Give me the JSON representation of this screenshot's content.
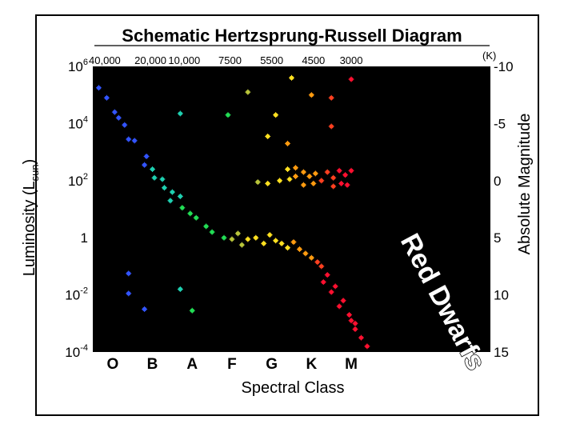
{
  "chart_data": {
    "type": "scatter",
    "title": "Schematic Hertzsprung-Russell Diagram",
    "xlabel": "Spectral Class",
    "ylabel_base": "Luminosity (L",
    "ylabel_sub": "sun",
    "ylabel_close": ")",
    "y2label": "Absolute Magnitude",
    "xlim": [
      0,
      10
    ],
    "ylim_log10": [
      -4,
      6
    ],
    "grid": false,
    "categories": [
      "O",
      "B",
      "A",
      "F",
      "G",
      "K",
      "M"
    ],
    "category_positions": [
      0.5,
      1.5,
      2.5,
      3.5,
      4.5,
      5.5,
      6.5
    ],
    "temperature_labels": [
      {
        "label": "40,000",
        "x": 0.3
      },
      {
        "label": "20,000",
        "x": 1.45
      },
      {
        "label": "10,000",
        "x": 2.3
      },
      {
        "label": "7500",
        "x": 3.45
      },
      {
        "label": "5500",
        "x": 4.5
      },
      {
        "label": "4500",
        "x": 5.55
      },
      {
        "label": "3000",
        "x": 6.5
      }
    ],
    "temperature_unit": "(K)",
    "y_ticks": [
      {
        "base": "10",
        "exp": "6",
        "value": 6
      },
      {
        "base": "10",
        "exp": "4",
        "value": 4
      },
      {
        "base": "10",
        "exp": "2",
        "value": 2
      },
      {
        "base": "1",
        "exp": "",
        "value": 0
      },
      {
        "base": "10",
        "exp": "-2",
        "value": -2
      },
      {
        "base": "10",
        "exp": "-4",
        "value": -4
      }
    ],
    "y2_ticks": [
      {
        "label": "-10",
        "logL": 6
      },
      {
        "label": "-5",
        "logL": 4
      },
      {
        "label": "0",
        "logL": 2
      },
      {
        "label": "5",
        "logL": 0
      },
      {
        "label": "10",
        "logL": -2
      },
      {
        "label": "15",
        "logL": -4
      }
    ],
    "annotation": "Red Dwarfs",
    "colors": {
      "O": "#3355ff",
      "B": "#3355ff",
      "A": "#1fd0b0",
      "A2": "#22dd55",
      "F": "#b8c43a",
      "G": "#ffe020",
      "K": "#ff9b10",
      "K2": "#ff4020",
      "M": "#ff1030"
    },
    "stars": [
      {
        "x": 0.15,
        "logL": 5.25,
        "c": "O"
      },
      {
        "x": 0.35,
        "logL": 4.9,
        "c": "O"
      },
      {
        "x": 0.55,
        "logL": 4.4,
        "c": "O"
      },
      {
        "x": 0.65,
        "logL": 4.2,
        "c": "O"
      },
      {
        "x": 0.8,
        "logL": 3.95,
        "c": "O"
      },
      {
        "x": 0.9,
        "logL": 3.45,
        "c": "O"
      },
      {
        "x": 1.05,
        "logL": 3.4,
        "c": "O"
      },
      {
        "x": 1.35,
        "logL": 2.85,
        "c": "B"
      },
      {
        "x": 1.3,
        "logL": 2.55,
        "c": "B"
      },
      {
        "x": 1.5,
        "logL": 2.4,
        "c": "A"
      },
      {
        "x": 1.55,
        "logL": 2.1,
        "c": "A"
      },
      {
        "x": 1.75,
        "logL": 2.05,
        "c": "A"
      },
      {
        "x": 1.8,
        "logL": 1.75,
        "c": "A"
      },
      {
        "x": 2.0,
        "logL": 1.6,
        "c": "A"
      },
      {
        "x": 1.95,
        "logL": 1.3,
        "c": "A"
      },
      {
        "x": 2.2,
        "logL": 1.45,
        "c": "A"
      },
      {
        "x": 2.25,
        "logL": 1.05,
        "c": "A2"
      },
      {
        "x": 2.45,
        "logL": 0.85,
        "c": "A2"
      },
      {
        "x": 2.6,
        "logL": 0.7,
        "c": "A2"
      },
      {
        "x": 2.85,
        "logL": 0.4,
        "c": "A2"
      },
      {
        "x": 3.0,
        "logL": 0.2,
        "c": "A2"
      },
      {
        "x": 3.3,
        "logL": 0.0,
        "c": "A2"
      },
      {
        "x": 3.5,
        "logL": -0.05,
        "c": "F"
      },
      {
        "x": 3.65,
        "logL": 0.15,
        "c": "F"
      },
      {
        "x": 3.75,
        "logL": -0.25,
        "c": "F"
      },
      {
        "x": 3.9,
        "logL": -0.05,
        "c": "G"
      },
      {
        "x": 4.1,
        "logL": 0.0,
        "c": "G"
      },
      {
        "x": 4.3,
        "logL": -0.2,
        "c": "G"
      },
      {
        "x": 4.45,
        "logL": 0.1,
        "c": "G"
      },
      {
        "x": 4.6,
        "logL": -0.1,
        "c": "G"
      },
      {
        "x": 4.75,
        "logL": -0.2,
        "c": "G"
      },
      {
        "x": 4.9,
        "logL": -0.35,
        "c": "G"
      },
      {
        "x": 5.05,
        "logL": -0.15,
        "c": "K"
      },
      {
        "x": 5.2,
        "logL": -0.4,
        "c": "K"
      },
      {
        "x": 5.35,
        "logL": -0.55,
        "c": "K"
      },
      {
        "x": 5.5,
        "logL": -0.7,
        "c": "K"
      },
      {
        "x": 5.65,
        "logL": -0.85,
        "c": "K2"
      },
      {
        "x": 5.75,
        "logL": -1.0,
        "c": "K2"
      },
      {
        "x": 5.9,
        "logL": -1.3,
        "c": "M"
      },
      {
        "x": 6.1,
        "logL": -1.7,
        "c": "M"
      },
      {
        "x": 6.3,
        "logL": -2.2,
        "c": "M"
      },
      {
        "x": 6.45,
        "logL": -2.7,
        "c": "M"
      },
      {
        "x": 6.6,
        "logL": -3.0,
        "c": "M"
      },
      {
        "x": 6.75,
        "logL": -3.5,
        "c": "M"
      },
      {
        "x": 6.6,
        "logL": -3.2,
        "c": "M"
      },
      {
        "x": 6.5,
        "logL": -2.9,
        "c": "M"
      },
      {
        "x": 6.9,
        "logL": -3.8,
        "c": "M"
      },
      {
        "x": 5.8,
        "logL": -1.55,
        "c": "M"
      },
      {
        "x": 6.0,
        "logL": -1.9,
        "c": "M"
      },
      {
        "x": 6.2,
        "logL": -2.4,
        "c": "M"
      },
      {
        "x": 4.7,
        "logL": 2.0,
        "c": "G"
      },
      {
        "x": 4.95,
        "logL": 2.05,
        "c": "G"
      },
      {
        "x": 5.1,
        "logL": 2.15,
        "c": "K"
      },
      {
        "x": 5.3,
        "logL": 2.3,
        "c": "K"
      },
      {
        "x": 5.45,
        "logL": 2.15,
        "c": "K"
      },
      {
        "x": 5.6,
        "logL": 2.25,
        "c": "K"
      },
      {
        "x": 5.3,
        "logL": 1.85,
        "c": "K"
      },
      {
        "x": 5.55,
        "logL": 1.9,
        "c": "K"
      },
      {
        "x": 5.75,
        "logL": 2.0,
        "c": "K2"
      },
      {
        "x": 5.9,
        "logL": 2.3,
        "c": "K2"
      },
      {
        "x": 6.05,
        "logL": 2.1,
        "c": "K2"
      },
      {
        "x": 6.2,
        "logL": 2.35,
        "c": "M"
      },
      {
        "x": 6.35,
        "logL": 2.2,
        "c": "M"
      },
      {
        "x": 6.5,
        "logL": 2.35,
        "c": "M"
      },
      {
        "x": 6.25,
        "logL": 1.9,
        "c": "M"
      },
      {
        "x": 6.4,
        "logL": 1.85,
        "c": "M"
      },
      {
        "x": 6.05,
        "logL": 1.8,
        "c": "K2"
      },
      {
        "x": 4.9,
        "logL": 2.4,
        "c": "G"
      },
      {
        "x": 5.1,
        "logL": 2.45,
        "c": "K"
      },
      {
        "x": 4.4,
        "logL": 1.9,
        "c": "G"
      },
      {
        "x": 4.15,
        "logL": 1.95,
        "c": "F"
      },
      {
        "x": 4.6,
        "logL": 4.3,
        "c": "G"
      },
      {
        "x": 4.4,
        "logL": 3.55,
        "c": "G"
      },
      {
        "x": 4.9,
        "logL": 3.3,
        "c": "K"
      },
      {
        "x": 5.0,
        "logL": 5.6,
        "c": "G"
      },
      {
        "x": 5.5,
        "logL": 5.0,
        "c": "K"
      },
      {
        "x": 6.0,
        "logL": 4.9,
        "c": "K2"
      },
      {
        "x": 6.5,
        "logL": 5.55,
        "c": "M"
      },
      {
        "x": 6.0,
        "logL": 3.9,
        "c": "K2"
      },
      {
        "x": 3.9,
        "logL": 5.1,
        "c": "F"
      },
      {
        "x": 3.4,
        "logL": 4.3,
        "c": "A2"
      },
      {
        "x": 2.2,
        "logL": 4.35,
        "c": "A"
      },
      {
        "x": 0.9,
        "logL": -1.25,
        "c": "O"
      },
      {
        "x": 0.9,
        "logL": -1.95,
        "c": "O"
      },
      {
        "x": 1.3,
        "logL": -2.5,
        "c": "O"
      },
      {
        "x": 2.2,
        "logL": -1.8,
        "c": "A"
      },
      {
        "x": 2.5,
        "logL": -2.55,
        "c": "A2"
      }
    ]
  }
}
